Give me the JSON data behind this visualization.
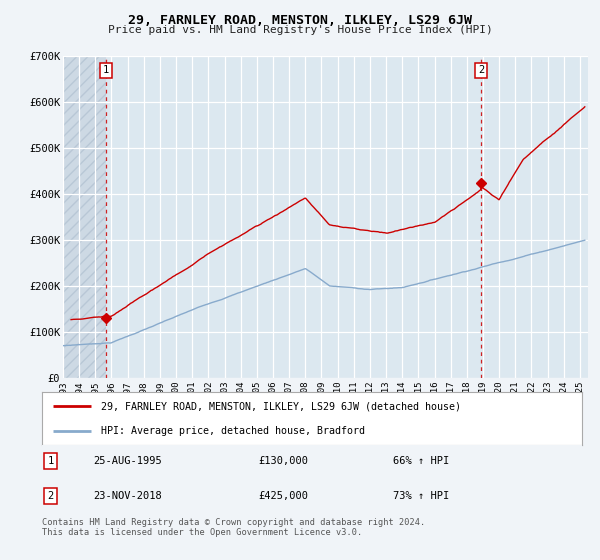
{
  "title": "29, FARNLEY ROAD, MENSTON, ILKLEY, LS29 6JW",
  "subtitle": "Price paid vs. HM Land Registry's House Price Index (HPI)",
  "ylim": [
    0,
    700000
  ],
  "yticks": [
    0,
    100000,
    200000,
    300000,
    400000,
    500000,
    600000,
    700000
  ],
  "ytick_labels": [
    "£0",
    "£100K",
    "£200K",
    "£300K",
    "£400K",
    "£500K",
    "£600K",
    "£700K"
  ],
  "xlim_start": 1993.0,
  "xlim_end": 2025.5,
  "xticks": [
    1993,
    1994,
    1995,
    1996,
    1997,
    1998,
    1999,
    2000,
    2001,
    2002,
    2003,
    2004,
    2005,
    2006,
    2007,
    2008,
    2009,
    2010,
    2011,
    2012,
    2013,
    2014,
    2015,
    2016,
    2017,
    2018,
    2019,
    2020,
    2021,
    2022,
    2023,
    2024,
    2025
  ],
  "sale1_date": 1995.648,
  "sale1_price": 130000,
  "sale2_date": 2018.899,
  "sale2_price": 425000,
  "line_color_property": "#cc0000",
  "line_color_hpi": "#88aacc",
  "marker_color": "#cc0000",
  "dashed_line_color": "#cc0000",
  "bg_color": "#f0f4f8",
  "plot_bg_color": "#dce8f0",
  "grid_color": "#ffffff",
  "hatch_color": "#c8d8e8",
  "legend_label_property": "29, FARNLEY ROAD, MENSTON, ILKLEY, LS29 6JW (detached house)",
  "legend_label_hpi": "HPI: Average price, detached house, Bradford",
  "annotation1_date": "25-AUG-1995",
  "annotation1_price": "£130,000",
  "annotation1_hpi": "66% ↑ HPI",
  "annotation2_date": "23-NOV-2018",
  "annotation2_price": "£425,000",
  "annotation2_hpi": "73% ↑ HPI",
  "footer": "Contains HM Land Registry data © Crown copyright and database right 2024.\nThis data is licensed under the Open Government Licence v3.0."
}
